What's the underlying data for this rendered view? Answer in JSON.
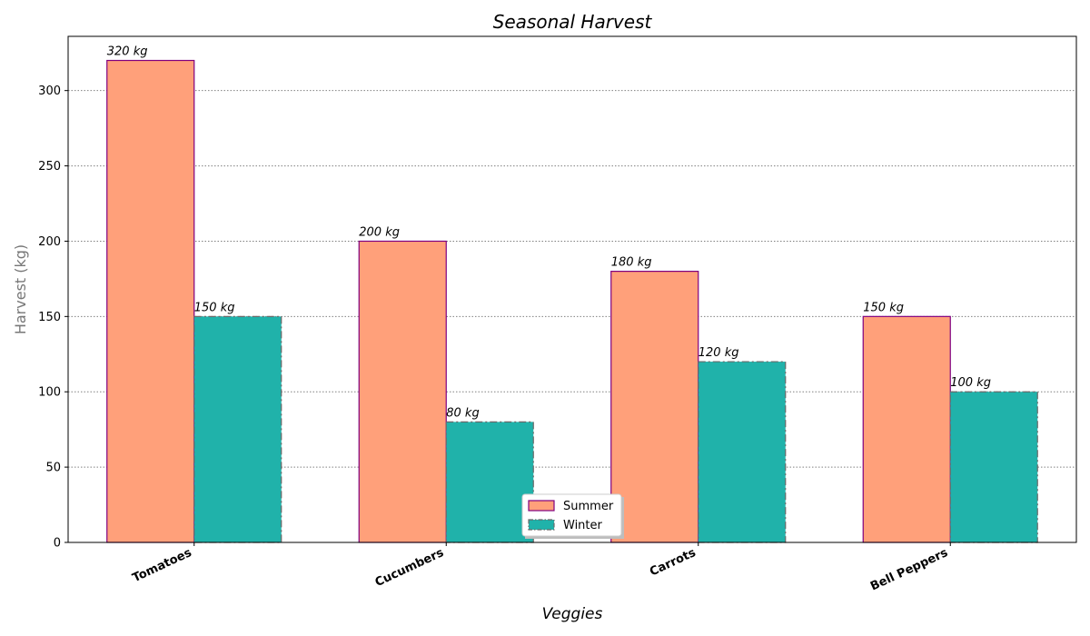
{
  "chart_data": {
    "type": "bar",
    "title": "Seasonal Harvest",
    "xlabel": "Veggies",
    "ylabel": "Harvest (kg)",
    "categories": [
      "Tomatoes",
      "Cucumbers",
      "Carrots",
      "Bell Peppers"
    ],
    "series": [
      {
        "name": "Summer",
        "values": [
          320,
          200,
          180,
          150
        ],
        "labels": [
          "320 kg",
          "200 kg",
          "180 kg",
          "150 kg"
        ],
        "color": "#ffa07a",
        "edge_color": "#800080",
        "edge_style": "solid"
      },
      {
        "name": "Winter",
        "values": [
          150,
          80,
          120,
          100
        ],
        "labels": [
          "150 kg",
          "80 kg",
          "120 kg",
          "100 kg"
        ],
        "color": "#20b2aa",
        "edge_color": "#696969",
        "edge_style": "dashdot"
      }
    ],
    "ylim": [
      0,
      336
    ],
    "yticks": [
      "0",
      "50",
      "100",
      "150",
      "200",
      "250",
      "300"
    ],
    "grid": "y-dotted",
    "legend_position": "lower-center"
  }
}
